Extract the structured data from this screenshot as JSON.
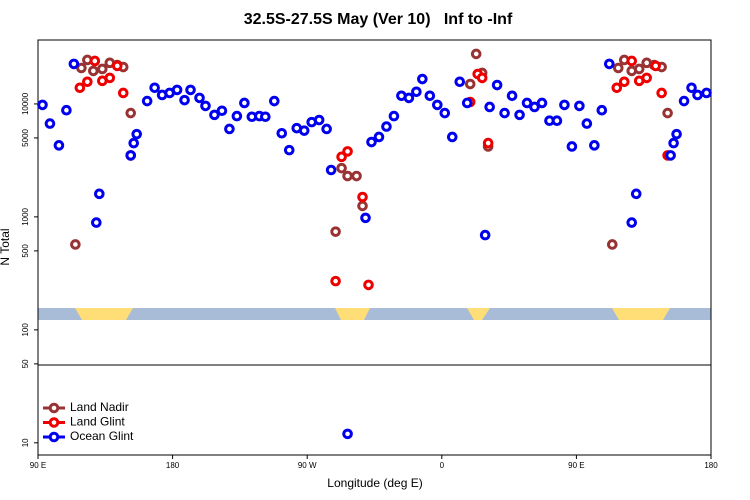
{
  "chart_data": {
    "type": "scatter",
    "title": "32.5S-27.5S May (Ver 10)   Inf to -Inf",
    "x_label": "Longitude (deg E)",
    "y_label": "N Total",
    "log_y": true,
    "legend": "lower left",
    "xlim": [
      90,
      540
    ],
    "xticks": [
      {
        "value": 90,
        "label": "90 E"
      },
      180,
      {
        "value": 270,
        "label": "90 W"
      },
      {
        "value": 360,
        "label": "0"
      },
      {
        "value": 450,
        "label": "90 E"
      },
      {
        "value": 540,
        "label": "180"
      }
    ],
    "ylim": [
      7.8,
      36800
    ],
    "yticks": [
      10,
      50,
      100,
      500,
      1000,
      5000,
      10000
    ],
    "series": [
      {
        "name": "Land Nadir",
        "color": "#993333",
        "x": [
          115,
          119,
          123,
          127,
          133,
          138,
          143,
          147,
          152,
          289,
          293,
          297,
          303,
          307,
          379,
          383,
          387,
          391,
          474,
          478,
          482,
          487,
          492,
          497,
          502,
          507,
          511
        ],
        "values": [
          570,
          20800,
          24500,
          19600,
          20400,
          23100,
          22100,
          21200,
          8300,
          740,
          2700,
          2300,
          2300,
          1250,
          15000,
          27700,
          18800,
          4200,
          570,
          20800,
          24500,
          19600,
          20400,
          23100,
          22100,
          21200,
          8300
        ]
      },
      {
        "name": "Land Glint",
        "color": "#ee0000",
        "x": [
          118,
          123,
          128,
          133,
          138,
          143,
          147,
          152,
          289,
          293,
          297,
          307,
          311,
          379,
          384,
          387,
          391,
          477,
          482,
          487,
          492,
          497,
          503,
          507,
          511
        ],
        "values": [
          13900,
          15700,
          24000,
          16000,
          17000,
          21700,
          12500,
          3500,
          270,
          3400,
          3800,
          1500,
          250,
          10400,
          18400,
          17000,
          4500,
          13900,
          15700,
          24000,
          16000,
          17000,
          21700,
          12500,
          3500
        ]
      },
      {
        "name": "Ocean Glint",
        "color": "#0000ee",
        "x": [
          93,
          98,
          104,
          109,
          114,
          129,
          131,
          152,
          154,
          156,
          163,
          168,
          173,
          178,
          183,
          188,
          192,
          198,
          202,
          208,
          213,
          218,
          223,
          228,
          233,
          238,
          242,
          248,
          253,
          258,
          263,
          268,
          273,
          278,
          283,
          286,
          297,
          309,
          313,
          318,
          323,
          328,
          333,
          338,
          343,
          347,
          352,
          357,
          362,
          367,
          372,
          377,
          389,
          392,
          397,
          402,
          407,
          412,
          417,
          422,
          427,
          432,
          437,
          442,
          447,
          452,
          457,
          462,
          467,
          472,
          487,
          490,
          513,
          515,
          517,
          522,
          527,
          531,
          537
        ],
        "values": [
          9800,
          6700,
          4300,
          8800,
          22600,
          890,
          1600,
          3500,
          4500,
          5400,
          10600,
          13900,
          12000,
          12500,
          13300,
          10800,
          13300,
          11300,
          9600,
          8000,
          8700,
          6000,
          7800,
          10200,
          7700,
          7800,
          7700,
          10600,
          5500,
          3900,
          6100,
          5800,
          6900,
          7200,
          6000,
          2600,
          12,
          980,
          4600,
          5100,
          6300,
          7800,
          11800,
          11300,
          12800,
          16600,
          11800,
          9800,
          8300,
          5100,
          15700,
          10200,
          690,
          9400,
          14700,
          8300,
          11800,
          8000,
          10200,
          9400,
          10200,
          7100,
          7100,
          9800,
          4200,
          9600,
          6700,
          4300,
          8800,
          22600,
          890,
          1600,
          3500,
          4500,
          5400,
          10600,
          13900,
          12000,
          12500
        ]
      }
    ]
  }
}
